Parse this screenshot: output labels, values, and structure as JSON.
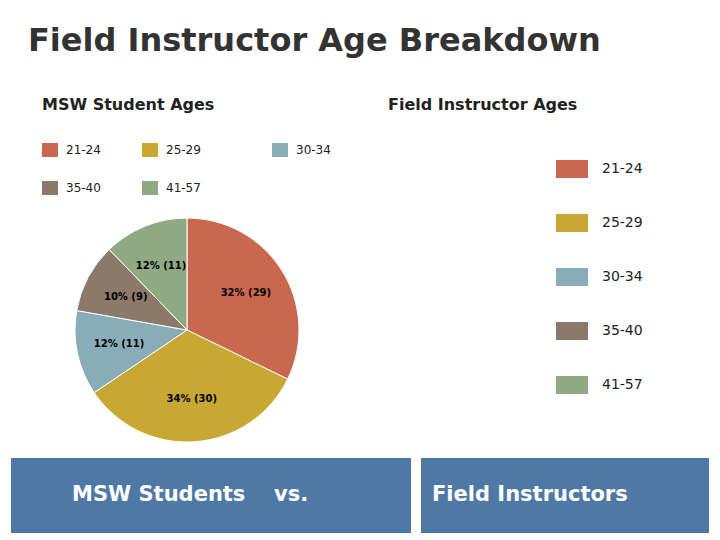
{
  "chart_data": {
    "type": "pie",
    "title": "Field Instructor Age Breakdown",
    "subtitle": "MSW Student Ages",
    "annotations": [
      "Field Instructor Ages",
      "MSW Students",
      "vs.",
      "Field Instructors"
    ],
    "categories": [
      "21-24",
      "25-29",
      "30-34",
      "35-40",
      "41-57"
    ],
    "values": [
      29,
      30,
      11,
      9,
      11
    ],
    "value_labels": [
      "32% (29)",
      "34% (30)",
      "12% (11)",
      "10% (9)",
      "12% (11)"
    ],
    "colors": [
      "#c9674f",
      "#c8a832",
      "#89adb8",
      "#8b7a6a",
      "#8faa82"
    ],
    "data_labels": true,
    "legend": "top"
  }
}
